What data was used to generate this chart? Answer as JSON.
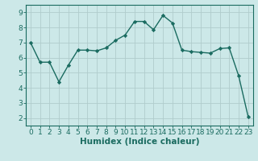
{
  "x": [
    0,
    1,
    2,
    3,
    4,
    5,
    6,
    7,
    8,
    9,
    10,
    11,
    12,
    13,
    14,
    15,
    16,
    17,
    18,
    19,
    20,
    21,
    22,
    23
  ],
  "y": [
    7.0,
    5.7,
    5.7,
    4.4,
    5.5,
    6.5,
    6.5,
    6.45,
    6.65,
    7.15,
    7.5,
    8.4,
    8.4,
    7.85,
    8.8,
    8.3,
    6.5,
    6.4,
    6.35,
    6.3,
    6.6,
    6.65,
    4.8,
    2.1
  ],
  "line_color": "#1a6b60",
  "bg_color": "#cce8e8",
  "grid_color": "#b0cccc",
  "xlabel": "Humidex (Indice chaleur)",
  "xlim": [
    -0.5,
    23.5
  ],
  "ylim": [
    1.5,
    9.5
  ],
  "yticks": [
    2,
    3,
    4,
    5,
    6,
    7,
    8,
    9
  ],
  "xticks": [
    0,
    1,
    2,
    3,
    4,
    5,
    6,
    7,
    8,
    9,
    10,
    11,
    12,
    13,
    14,
    15,
    16,
    17,
    18,
    19,
    20,
    21,
    22,
    23
  ],
  "marker": "D",
  "markersize": 2.2,
  "linewidth": 1.0,
  "xlabel_fontsize": 7.5,
  "tick_fontsize": 6.5
}
